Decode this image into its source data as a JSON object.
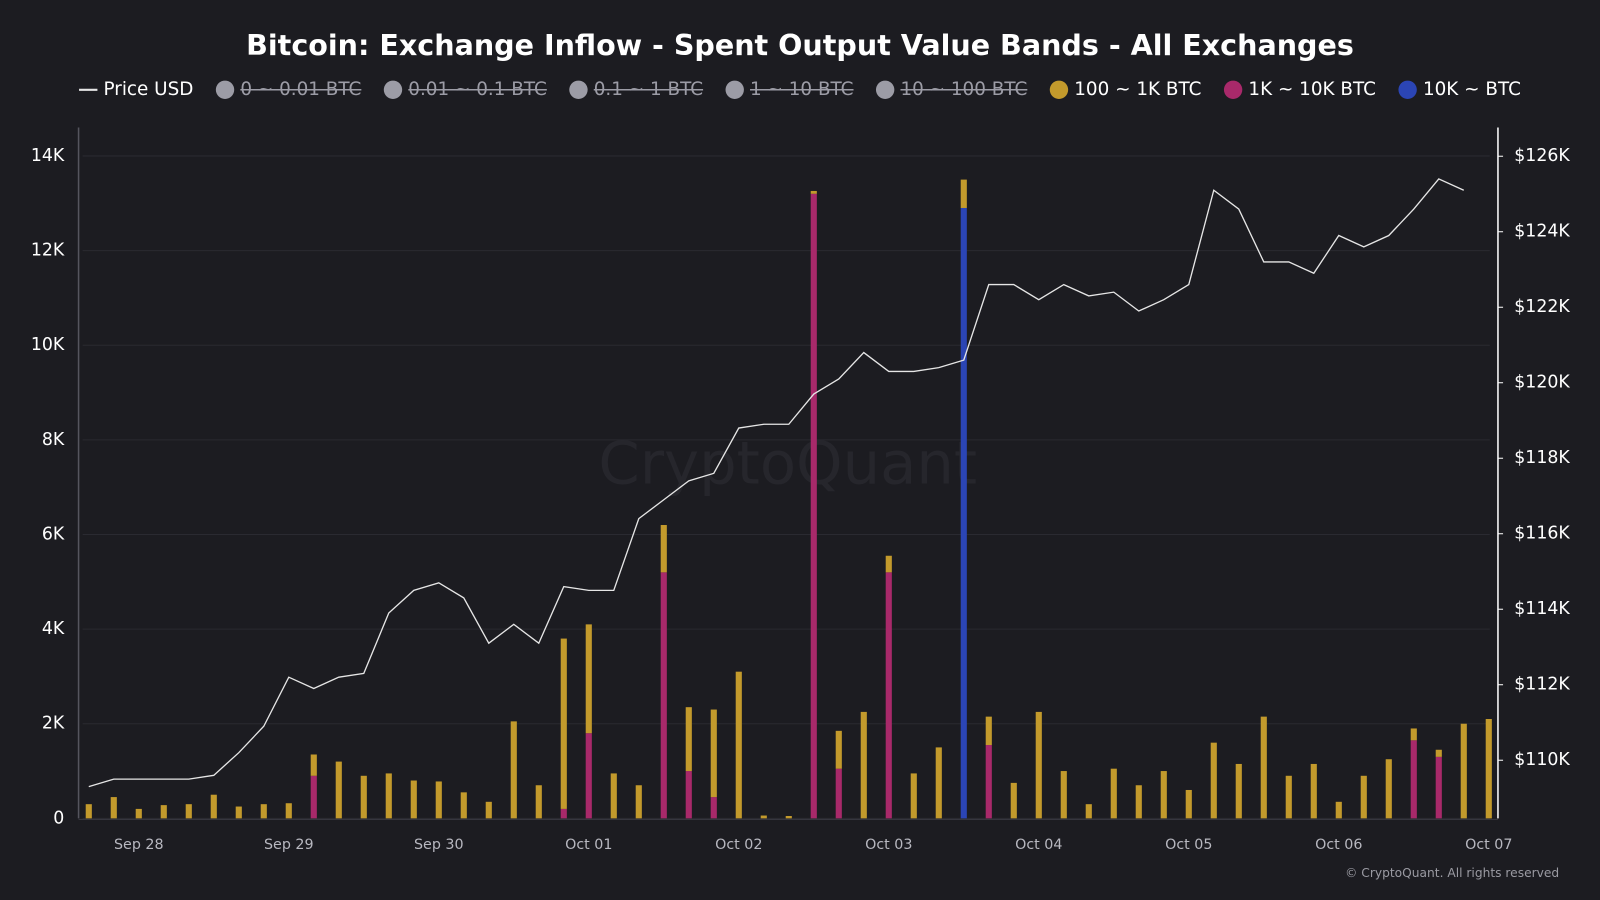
{
  "chart_data": {
    "type": "bar",
    "title": "Bitcoin: Exchange Inflow - Spent Output Value Bands - All Exchanges",
    "watermark": "CryptoQuant",
    "credit": "© CryptoQuant. All rights reserved",
    "categories": [
      null,
      null,
      "Sep 28",
      null,
      null,
      null,
      null,
      null,
      "Sep 29",
      null,
      null,
      null,
      null,
      null,
      "Sep 30",
      null,
      null,
      null,
      null,
      null,
      "Oct 01",
      null,
      null,
      null,
      null,
      null,
      "Oct 02",
      null,
      null,
      null,
      null,
      null,
      "Oct 03",
      null,
      null,
      null,
      null,
      null,
      "Oct 04",
      null,
      null,
      null,
      null,
      null,
      "Oct 05",
      null,
      null,
      null,
      null,
      null,
      "Oct 06",
      null,
      null,
      null,
      null,
      null,
      "Oct 07"
    ],
    "stacked": true,
    "series": [
      {
        "name": "Price USD",
        "type": "line",
        "axis": "y2",
        "color": "#e6e6e6",
        "values": [
          109300,
          109500,
          109500,
          109500,
          109500,
          109600,
          110200,
          110900,
          112200,
          111900,
          112200,
          112300,
          113900,
          114500,
          114700,
          114300,
          113100,
          113600,
          113100,
          114600,
          114500,
          114500,
          116400,
          116900,
          117400,
          117600,
          118800,
          118900,
          118900,
          119700,
          120100,
          120800,
          120300,
          120300,
          120400,
          120600,
          122600,
          122600,
          122200,
          122600,
          122300,
          122400,
          121900,
          122200,
          122600,
          125100,
          124600,
          123200,
          123200,
          122900,
          123900,
          123600,
          123900,
          124600,
          125400,
          125100,
          null
        ]
      },
      {
        "name": "100 ~ 1K BTC",
        "color": "#c39a2c",
        "values": [
          300,
          450,
          200,
          280,
          300,
          500,
          250,
          300,
          320,
          450,
          1200,
          900,
          950,
          800,
          780,
          550,
          350,
          2050,
          700,
          3600,
          2300,
          950,
          700,
          1000,
          1350,
          1850,
          3100,
          60,
          50,
          60,
          800,
          2250,
          350,
          950,
          1500,
          600,
          600,
          750,
          2250,
          1000,
          300,
          1050,
          700,
          1000,
          600,
          1600,
          1150,
          2150,
          900,
          1150,
          350,
          900,
          1250,
          250,
          150,
          2000,
          2100
        ]
      },
      {
        "name": "1K ~ 10K BTC",
        "color": "#a8296a",
        "values": [
          0,
          0,
          0,
          0,
          0,
          0,
          0,
          0,
          0,
          900,
          0,
          0,
          0,
          0,
          0,
          0,
          0,
          0,
          0,
          200,
          1800,
          0,
          0,
          5200,
          1000,
          450,
          0,
          0,
          0,
          13200,
          1050,
          0,
          5200,
          0,
          0,
          0,
          1550,
          0,
          0,
          0,
          0,
          0,
          0,
          0,
          0,
          0,
          0,
          0,
          0,
          0,
          0,
          0,
          0,
          1650,
          1300,
          0,
          0
        ]
      },
      {
        "name": "10K ~ BTC",
        "color": "#2b45b5",
        "values": [
          0,
          0,
          0,
          0,
          0,
          0,
          0,
          0,
          0,
          0,
          0,
          0,
          0,
          0,
          0,
          0,
          0,
          0,
          0,
          0,
          0,
          0,
          0,
          0,
          0,
          0,
          0,
          0,
          0,
          0,
          0,
          0,
          0,
          0,
          0,
          12900,
          0,
          0,
          0,
          0,
          0,
          0,
          0,
          0,
          0,
          0,
          0,
          0,
          0,
          0,
          0,
          0,
          0,
          0,
          0,
          0,
          0
        ]
      }
    ],
    "hidden_series": [
      {
        "name": "0 ~ 0.01 BTC"
      },
      {
        "name": "0.01 ~ 0.1 BTC"
      },
      {
        "name": "0.1 ~ 1 BTC"
      },
      {
        "name": "1 ~ 10 BTC"
      },
      {
        "name": "10 ~ 100 BTC"
      }
    ],
    "hidden_color": "#9c9ca6",
    "ylim": [
      0,
      14600
    ],
    "yticks": [
      0,
      {
        "value": 2000,
        "label": "2K"
      },
      {
        "value": 4000,
        "label": "4K"
      },
      {
        "value": 6000,
        "label": "6K"
      },
      {
        "value": 8000,
        "label": "8K"
      },
      {
        "value": 10000,
        "label": "10K"
      },
      {
        "value": 12000,
        "label": "12K"
      },
      {
        "value": 14000,
        "label": "14K"
      }
    ],
    "y2lim": [
      108460,
      126760
    ],
    "y2ticks": [
      {
        "value": 110000,
        "label": "$110K"
      },
      {
        "value": 112000,
        "label": "$112K"
      },
      {
        "value": 114000,
        "label": "$114K"
      },
      {
        "value": 116000,
        "label": "$116K"
      },
      {
        "value": 118000,
        "label": "$118K"
      },
      {
        "value": 120000,
        "label": "$120K"
      },
      {
        "value": 122000,
        "label": "$122K"
      },
      {
        "value": 124000,
        "label": "$124K"
      },
      {
        "value": 126000,
        "label": "$126K"
      }
    ],
    "grid": true
  }
}
